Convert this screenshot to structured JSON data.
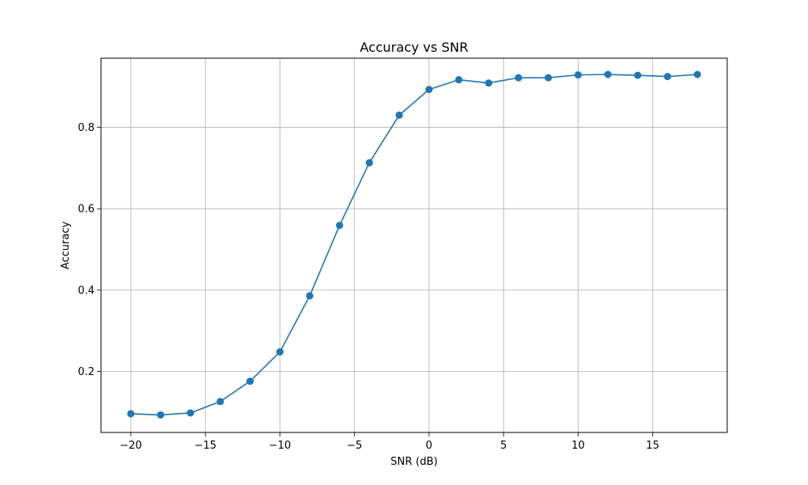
{
  "chart_data": {
    "type": "line",
    "title": "Accuracy vs SNR",
    "xlabel": "SNR (dB)",
    "ylabel": "Accuracy",
    "xlim": [
      -22,
      20
    ],
    "ylim": [
      0.05,
      0.97
    ],
    "xticks": [
      -20,
      -15,
      -10,
      -5,
      0,
      5,
      10,
      15
    ],
    "xtick_labels": [
      "−20",
      "−15",
      "−10",
      "−5",
      "0",
      "5",
      "10",
      "15"
    ],
    "yticks": [
      0.2,
      0.4,
      0.6,
      0.8
    ],
    "ytick_labels": [
      "0.2",
      "0.4",
      "0.6",
      "0.8"
    ],
    "grid": true,
    "series": [
      {
        "color": "#1f77b4",
        "marker": "circle",
        "x": [
          -20,
          -18,
          -16,
          -14,
          -12,
          -10,
          -8,
          -6,
          -4,
          -2,
          0,
          2,
          4,
          6,
          8,
          10,
          12,
          14,
          16,
          18
        ],
        "y": [
          0.096,
          0.093,
          0.098,
          0.126,
          0.176,
          0.248,
          0.386,
          0.559,
          0.713,
          0.83,
          0.893,
          0.917,
          0.909,
          0.922,
          0.922,
          0.929,
          0.93,
          0.928,
          0.925,
          0.93
        ]
      }
    ]
  }
}
